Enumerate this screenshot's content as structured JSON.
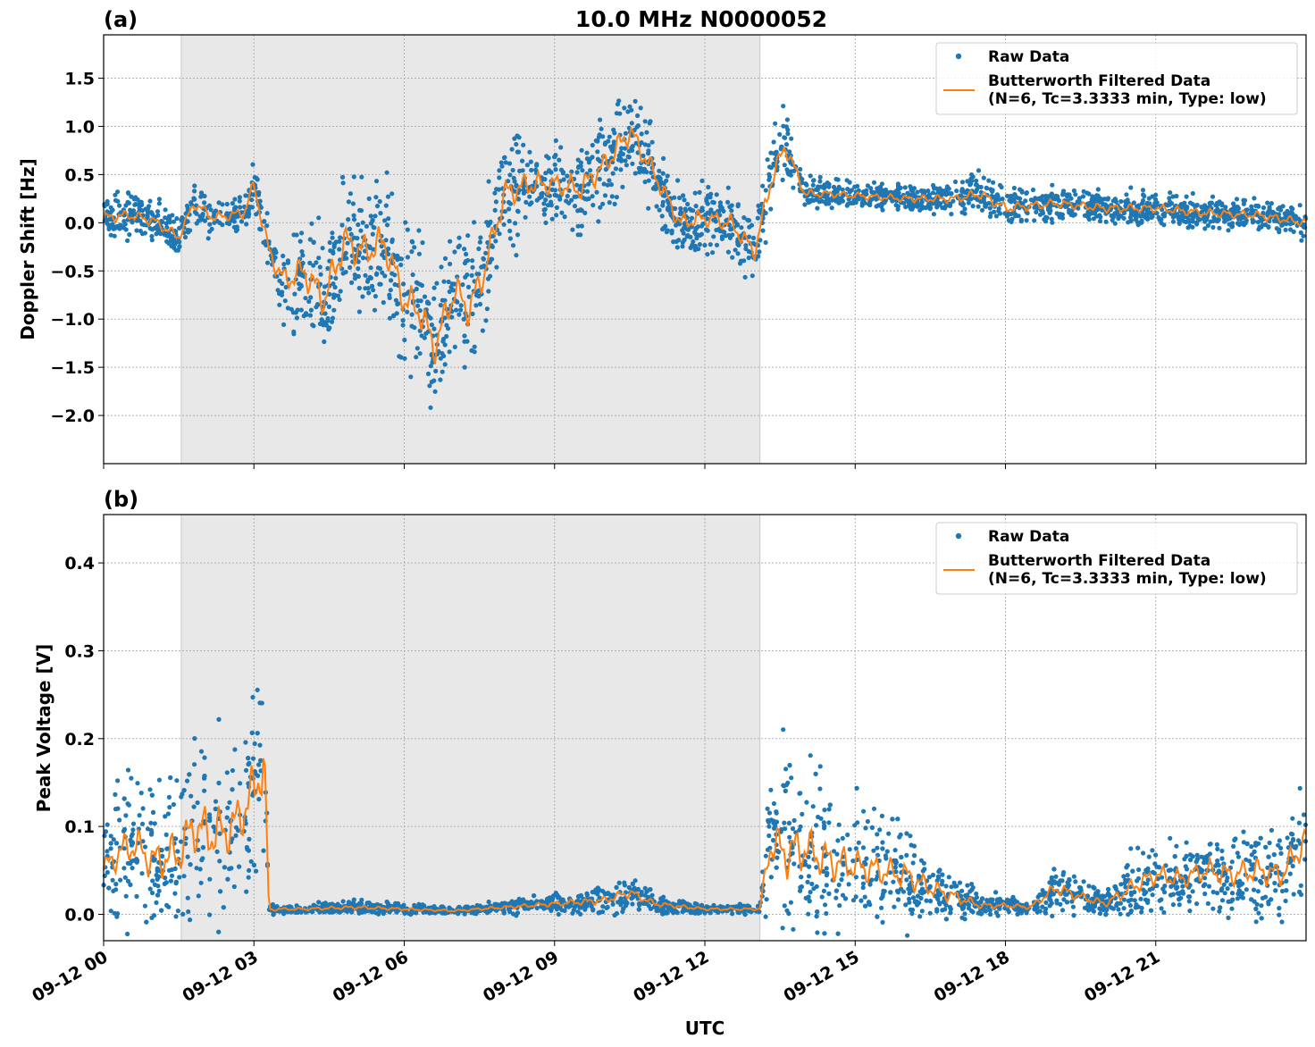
{
  "chart_data": {
    "title": "10.0 MHz N0000052",
    "xlabel": "UTC",
    "x_ticks": [
      "09-12 00",
      "09-12 03",
      "09-12 06",
      "09-12 09",
      "09-12 12",
      "09-12 15",
      "09-12 18",
      "09-12 21"
    ],
    "xlim_hours": [
      0,
      24
    ],
    "shaded_interval_hours": [
      1.55,
      13.1
    ],
    "grid": true,
    "legend_placement": "top-right",
    "panels": [
      {
        "label": "(a)",
        "type": "scatter+line",
        "ylabel": "Doppler Shift [Hz]",
        "ylim": [
          -2.5,
          1.95
        ],
        "y_ticks": [
          "1.5",
          "1.0",
          "0.5",
          "0.0",
          "−0.5",
          "−1.0",
          "−1.5",
          "−2.0"
        ],
        "y_tick_values": [
          1.5,
          1.0,
          0.5,
          0.0,
          -0.5,
          -1.0,
          -1.5,
          -2.0
        ],
        "legend": [
          "Raw Data",
          "Butterworth Filtered Data",
          "(N=6, Tc=3.3333 min, Type: low)"
        ],
        "series": [
          {
            "name": "Raw Data",
            "color": "#1f77b4",
            "x": [
              0.0,
              0.5,
              1.0,
              1.5,
              1.8,
              2.2,
              2.8,
              3.0,
              3.3,
              3.6,
              4.0,
              4.4,
              4.8,
              5.2,
              5.6,
              6.0,
              6.3,
              6.6,
              7.0,
              7.3,
              7.6,
              8.0,
              8.5,
              9.0,
              9.5,
              10.0,
              10.5,
              11.0,
              11.5,
              12.0,
              12.5,
              13.0,
              13.3,
              13.6,
              14.0,
              14.5,
              15.0,
              16.0,
              17.0,
              17.5,
              18.0,
              19.0,
              20.0,
              21.0,
              22.0,
              23.0,
              24.0
            ],
            "y": [
              0.05,
              0.08,
              0.02,
              -0.15,
              0.2,
              0.05,
              0.1,
              0.4,
              -0.3,
              -0.6,
              -0.5,
              -0.8,
              -0.2,
              -0.3,
              -0.2,
              -0.8,
              -0.9,
              -1.3,
              -0.7,
              -0.9,
              -0.5,
              0.3,
              0.4,
              0.4,
              0.35,
              0.6,
              0.95,
              0.5,
              0.0,
              0.05,
              0.0,
              -0.3,
              0.4,
              0.8,
              0.3,
              0.3,
              0.28,
              0.25,
              0.25,
              0.3,
              0.15,
              0.2,
              0.15,
              0.15,
              0.1,
              0.08,
              0.0
            ],
            "spread": [
              0.15,
              0.15,
              0.15,
              0.15,
              0.15,
              0.15,
              0.15,
              0.2,
              0.25,
              0.35,
              0.45,
              0.5,
              0.5,
              0.5,
              0.5,
              0.5,
              0.5,
              0.5,
              0.5,
              0.5,
              0.45,
              0.4,
              0.35,
              0.3,
              0.35,
              0.35,
              0.35,
              0.3,
              0.25,
              0.25,
              0.25,
              0.25,
              0.3,
              0.25,
              0.12,
              0.1,
              0.1,
              0.1,
              0.12,
              0.15,
              0.15,
              0.12,
              0.12,
              0.12,
              0.12,
              0.12,
              0.12
            ]
          },
          {
            "name": "Butterworth Filtered Data",
            "color": "#ff7f0e",
            "x": [
              0.0,
              0.5,
              1.0,
              1.5,
              1.8,
              2.2,
              2.8,
              3.0,
              3.3,
              3.6,
              4.0,
              4.4,
              4.8,
              5.2,
              5.6,
              6.0,
              6.3,
              6.6,
              7.0,
              7.3,
              7.6,
              8.0,
              8.5,
              9.0,
              9.5,
              10.0,
              10.5,
              11.0,
              11.5,
              12.0,
              12.5,
              13.0,
              13.3,
              13.6,
              14.0,
              14.5,
              15.0,
              16.0,
              17.0,
              17.5,
              18.0,
              19.0,
              20.0,
              21.0,
              22.0,
              23.0,
              24.0
            ],
            "y": [
              0.05,
              0.08,
              0.02,
              -0.15,
              0.2,
              0.05,
              0.1,
              0.4,
              -0.3,
              -0.6,
              -0.5,
              -0.8,
              -0.2,
              -0.3,
              -0.2,
              -0.8,
              -0.9,
              -1.3,
              -0.7,
              -0.9,
              -0.5,
              0.3,
              0.4,
              0.4,
              0.35,
              0.6,
              0.95,
              0.5,
              0.0,
              0.05,
              0.0,
              -0.3,
              0.4,
              0.8,
              0.3,
              0.3,
              0.28,
              0.25,
              0.25,
              0.3,
              0.15,
              0.2,
              0.15,
              0.15,
              0.1,
              0.08,
              0.0
            ]
          }
        ]
      },
      {
        "label": "(b)",
        "type": "scatter+line",
        "ylabel": "Peak Voltage [V]",
        "ylim": [
          -0.03,
          0.455
        ],
        "y_ticks": [
          "0.4",
          "0.3",
          "0.2",
          "0.1",
          "0.0"
        ],
        "y_tick_values": [
          0.4,
          0.3,
          0.2,
          0.1,
          0.0
        ],
        "legend": [
          "Raw Data",
          "Butterworth Filtered Data",
          "(N=6, Tc=3.3333 min, Type: low)"
        ],
        "series": [
          {
            "name": "Raw Data",
            "color": "#1f77b4",
            "x": [
              0.0,
              0.3,
              0.6,
              1.0,
              1.5,
              1.8,
              2.2,
              2.6,
              3.0,
              3.2,
              3.3,
              3.5,
              4.0,
              5.0,
              6.0,
              7.0,
              8.0,
              9.0,
              10.0,
              10.5,
              11.0,
              12.0,
              13.0,
              13.1,
              13.3,
              13.6,
              14.0,
              14.5,
              15.0,
              15.5,
              16.0,
              16.5,
              17.0,
              17.5,
              18.0,
              18.5,
              19.0,
              19.5,
              20.0,
              20.5,
              21.0,
              21.5,
              22.0,
              22.5,
              23.0,
              23.5,
              24.0
            ],
            "y": [
              0.05,
              0.07,
              0.08,
              0.06,
              0.07,
              0.1,
              0.09,
              0.1,
              0.14,
              0.18,
              0.005,
              0.006,
              0.006,
              0.008,
              0.006,
              0.004,
              0.008,
              0.012,
              0.016,
              0.025,
              0.012,
              0.006,
              0.006,
              0.006,
              0.08,
              0.07,
              0.075,
              0.06,
              0.055,
              0.05,
              0.045,
              0.03,
              0.02,
              0.01,
              0.01,
              0.008,
              0.03,
              0.02,
              0.012,
              0.03,
              0.045,
              0.04,
              0.05,
              0.045,
              0.05,
              0.045,
              0.085
            ],
            "spread": [
              0.04,
              0.05,
              0.06,
              0.06,
              0.07,
              0.08,
              0.08,
              0.08,
              0.09,
              0.12,
              0.005,
              0.004,
              0.004,
              0.006,
              0.004,
              0.003,
              0.005,
              0.008,
              0.012,
              0.015,
              0.008,
              0.004,
              0.004,
              0.004,
              0.06,
              0.08,
              0.07,
              0.06,
              0.05,
              0.045,
              0.04,
              0.03,
              0.02,
              0.01,
              0.008,
              0.006,
              0.02,
              0.015,
              0.01,
              0.025,
              0.03,
              0.03,
              0.035,
              0.035,
              0.04,
              0.04,
              0.05
            ]
          },
          {
            "name": "Butterworth Filtered Data",
            "color": "#ff7f0e",
            "x": [
              0.0,
              0.3,
              0.6,
              1.0,
              1.5,
              1.8,
              2.2,
              2.6,
              3.0,
              3.2,
              3.3,
              3.5,
              4.0,
              5.0,
              6.0,
              7.0,
              8.0,
              9.0,
              10.0,
              10.5,
              11.0,
              12.0,
              13.0,
              13.1,
              13.3,
              13.6,
              14.0,
              14.5,
              15.0,
              15.5,
              16.0,
              16.5,
              17.0,
              17.5,
              18.0,
              18.5,
              19.0,
              19.5,
              20.0,
              20.5,
              21.0,
              21.5,
              22.0,
              22.5,
              23.0,
              23.5,
              24.0
            ],
            "y": [
              0.05,
              0.07,
              0.08,
              0.06,
              0.07,
              0.1,
              0.09,
              0.1,
              0.14,
              0.18,
              0.005,
              0.006,
              0.006,
              0.008,
              0.006,
              0.004,
              0.008,
              0.012,
              0.016,
              0.025,
              0.012,
              0.006,
              0.006,
              0.006,
              0.08,
              0.07,
              0.075,
              0.06,
              0.055,
              0.05,
              0.045,
              0.03,
              0.02,
              0.01,
              0.01,
              0.008,
              0.03,
              0.02,
              0.012,
              0.03,
              0.045,
              0.04,
              0.05,
              0.045,
              0.05,
              0.045,
              0.085
            ]
          }
        ]
      }
    ]
  }
}
